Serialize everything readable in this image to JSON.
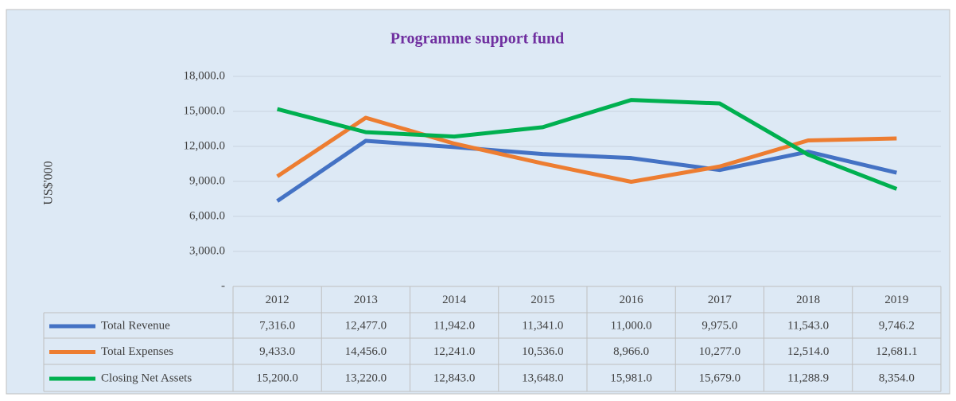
{
  "chart_data": {
    "type": "line",
    "title": "Programme support fund",
    "y_label": "US$'000",
    "categories": [
      "2012",
      "2013",
      "2014",
      "2015",
      "2016",
      "2017",
      "2018",
      "2019"
    ],
    "series": [
      {
        "name": "Total Revenue",
        "color": "#4472c4",
        "values": [
          7316,
          12477,
          11942,
          11341,
          11000,
          9975,
          11543,
          9746.2
        ],
        "value_labels": [
          "7,316.0",
          "12,477.0",
          "11,942.0",
          "11,341.0",
          "11,000.0",
          "9,975.0",
          "11,543.0",
          "9,746.2"
        ]
      },
      {
        "name": "Total Expenses",
        "color": "#ed7d31",
        "values": [
          9433,
          14456,
          12241,
          10536,
          8966,
          10277,
          12514,
          12681.1
        ],
        "value_labels": [
          "9,433.0",
          "14,456.0",
          "12,241.0",
          "10,536.0",
          "8,966.0",
          "10,277.0",
          "12,514.0",
          "12,681.1"
        ]
      },
      {
        "name": "Closing Net Assets",
        "color": "#00b050",
        "values": [
          15200,
          13220,
          12843,
          13648,
          15981,
          15679,
          11288.9,
          8354
        ],
        "value_labels": [
          "15,200.0",
          "13,220.0",
          "12,843.0",
          "13,648.0",
          "15,981.0",
          "15,679.0",
          "11,288.9",
          "8,354.0"
        ]
      }
    ],
    "ylim": [
      0,
      18000
    ],
    "yticks": [
      {
        "value": 0,
        "label": "-"
      },
      {
        "value": 3000,
        "label": "3,000.0"
      },
      {
        "value": 6000,
        "label": "6,000.0"
      },
      {
        "value": 9000,
        "label": "9,000.0"
      },
      {
        "value": 12000,
        "label": "12,000.0"
      },
      {
        "value": 15000,
        "label": "15,000.0"
      },
      {
        "value": 18000,
        "label": "18,000.0"
      }
    ],
    "grid": true
  }
}
